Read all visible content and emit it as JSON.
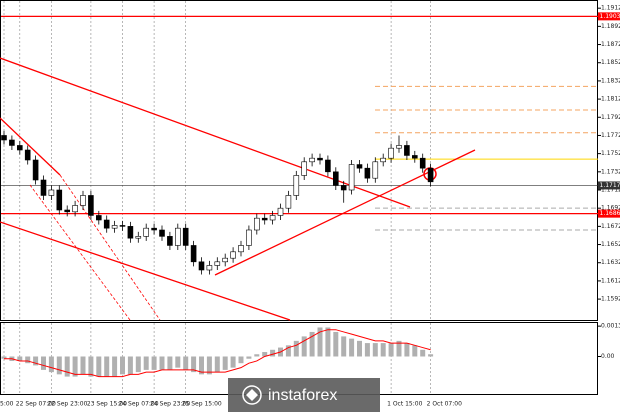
{
  "chart_data": [
    {
      "type": "candlestick",
      "categories": [
        "5:00",
        null,
        "22 Sep 07:00",
        null,
        null,
        null,
        "22 Sep 23:00",
        null,
        null,
        null,
        null,
        "23 Sep 15:00",
        null,
        null,
        null,
        "24 Sep 07:00",
        null,
        null,
        null,
        "24 Sep 23:00",
        null,
        null,
        null,
        "25 Sep 15:00",
        null,
        null,
        null,
        null,
        null,
        null,
        null,
        null,
        null,
        null,
        null,
        null,
        null,
        null,
        null,
        null,
        null,
        null,
        null,
        null,
        null,
        null,
        null,
        null,
        null,
        "1 Oct 15:00",
        null,
        null,
        null,
        null,
        "2 Oct 07:00"
      ],
      "open": [
        1.1772,
        1.1767,
        1.1761,
        1.1756,
        1.1745,
        1.1723,
        1.1706,
        1.1712,
        1.169,
        1.1688,
        1.1695,
        1.1706,
        1.1684,
        1.1679,
        1.167,
        1.1673,
        1.1672,
        1.1659,
        1.1661,
        1.167,
        1.1668,
        1.1661,
        1.1651,
        1.167,
        1.1651,
        1.1633,
        1.1624,
        1.1629,
        1.1633,
        1.1637,
        1.1644,
        1.1651,
        1.1668,
        1.1681,
        1.1679,
        1.1684,
        1.1692,
        1.1706,
        1.1728,
        1.1743,
        1.1747,
        1.1745,
        1.1732,
        1.1717,
        1.1712,
        1.174,
        1.1736,
        1.1725,
        1.1743,
        1.1747,
        1.1758,
        1.1761,
        1.175,
        1.1747,
        1.1736
      ],
      "high": [
        1.1777,
        1.1772,
        1.1766,
        1.1761,
        1.175,
        1.1728,
        1.1717,
        1.1717,
        1.1695,
        1.17,
        1.1711,
        1.1711,
        1.1689,
        1.1684,
        1.1678,
        1.1678,
        1.1677,
        1.1666,
        1.1675,
        1.1675,
        1.1673,
        1.1666,
        1.1675,
        1.1675,
        1.1656,
        1.1638,
        1.1634,
        1.1638,
        1.1642,
        1.1649,
        1.1656,
        1.1673,
        1.1686,
        1.1686,
        1.1689,
        1.1697,
        1.1711,
        1.1733,
        1.1748,
        1.1752,
        1.1752,
        1.175,
        1.1737,
        1.1722,
        1.1745,
        1.1745,
        1.1741,
        1.1748,
        1.1752,
        1.1763,
        1.1772,
        1.1766,
        1.1755,
        1.1752,
        1.1741
      ],
      "low": [
        1.1762,
        1.1756,
        1.1751,
        1.174,
        1.1718,
        1.1701,
        1.1701,
        1.1685,
        1.1683,
        1.1683,
        1.169,
        1.1679,
        1.1674,
        1.1665,
        1.1665,
        1.1667,
        1.1654,
        1.1654,
        1.1656,
        1.1663,
        1.1656,
        1.1646,
        1.1646,
        1.1646,
        1.1628,
        1.1619,
        1.1619,
        1.1624,
        1.1628,
        1.1632,
        1.1639,
        1.1646,
        1.1663,
        1.1674,
        1.1674,
        1.1679,
        1.1687,
        1.1701,
        1.1723,
        1.1738,
        1.174,
        1.1727,
        1.1712,
        1.1698,
        1.1707,
        1.1731,
        1.172,
        1.172,
        1.1738,
        1.1742,
        1.1753,
        1.1745,
        1.1742,
        1.1731,
        1.1716
      ],
      "close": [
        1.1767,
        1.1761,
        1.1756,
        1.1745,
        1.1723,
        1.1706,
        1.1712,
        1.169,
        1.1688,
        1.1695,
        1.1706,
        1.1684,
        1.1679,
        1.167,
        1.1673,
        1.1672,
        1.1659,
        1.1661,
        1.167,
        1.1668,
        1.1661,
        1.1651,
        1.167,
        1.1651,
        1.1633,
        1.1624,
        1.1629,
        1.1633,
        1.1637,
        1.1644,
        1.1651,
        1.1668,
        1.1681,
        1.1679,
        1.1684,
        1.1692,
        1.1706,
        1.1728,
        1.1743,
        1.1747,
        1.1745,
        1.1732,
        1.1717,
        1.1712,
        1.174,
        1.1736,
        1.1725,
        1.1743,
        1.1747,
        1.1758,
        1.1761,
        1.175,
        1.1747,
        1.1736,
        1.1721
      ],
      "ylim": [
        1.1569,
        1.1921
      ],
      "yticks": [
        1.1592,
        1.1612,
        1.1632,
        1.1652,
        1.1672,
        1.1692,
        1.1712,
        1.1732,
        1.1752,
        1.1772,
        1.1792,
        1.1812,
        1.1832,
        1.1852,
        1.1872,
        1.1892,
        1.1912
      ],
      "grid": "x",
      "levels": [
        {
          "value": 1.1903,
          "label": "1.1903",
          "color": "#ff0000"
        },
        {
          "value": 1.1686,
          "label": "1.1686",
          "color": "#ff0000"
        },
        {
          "value": 1.1717,
          "label": "1.1717",
          "color": "#333333"
        }
      ],
      "fib_levels": [
        {
          "value": 1.1826,
          "color": "#f4a460",
          "style": "dashed"
        },
        {
          "value": 1.18,
          "color": "#f4a460",
          "style": "dashed"
        },
        {
          "value": 1.1775,
          "color": "#f4a460",
          "style": "dashed"
        },
        {
          "value": 1.1746,
          "color": "#ffd700",
          "style": "solid"
        },
        {
          "value": 1.1692,
          "color": "#aaaaaa",
          "style": "dashed"
        },
        {
          "value": 1.1668,
          "color": "#aaaaaa",
          "style": "dashed"
        }
      ],
      "bull_color": "#ffffff",
      "bear_color": "#000000"
    },
    {
      "type": "bar",
      "values": [
        -0.0001,
        -0.0002,
        -0.0002,
        -0.0003,
        -0.0004,
        -0.0006,
        -0.0007,
        -0.0008,
        -0.0009,
        -0.0009,
        -0.0008,
        -0.0009,
        -0.0009,
        -0.0009,
        -0.0009,
        -0.0008,
        -0.0008,
        -0.0007,
        -0.0006,
        -0.0006,
        -0.0006,
        -0.0006,
        -0.0005,
        -0.0006,
        -0.0007,
        -0.0008,
        -0.0008,
        -0.0007,
        -0.0006,
        -0.0005,
        -0.0003,
        -0.0001,
        0.0001,
        0.0002,
        0.0003,
        0.0004,
        0.0005,
        0.0007,
        0.0009,
        0.0011,
        0.0013,
        0.0013,
        0.0011,
        0.0009,
        0.0008,
        0.0007,
        0.0006,
        0.0006,
        0.0006,
        0.0006,
        0.0007,
        0.0006,
        0.0005,
        0.0003,
        0.0001
      ],
      "color": "#b0b0b0",
      "signal": [
        -0.0001,
        -0.0001,
        -0.0002,
        -0.0002,
        -0.0003,
        -0.0004,
        -0.0005,
        -0.0006,
        -0.0007,
        -0.0008,
        -0.0008,
        -0.0008,
        -0.0009,
        -0.0009,
        -0.0009,
        -0.0009,
        -0.0008,
        -0.0008,
        -0.0007,
        -0.0007,
        -0.0006,
        -0.0006,
        -0.0006,
        -0.0006,
        -0.0006,
        -0.0007,
        -0.0007,
        -0.0007,
        -0.0007,
        -0.0006,
        -0.0005,
        -0.0003,
        -0.0002,
        0,
        0.0001,
        0.0002,
        0.0004,
        0.0005,
        0.0007,
        0.0009,
        0.0011,
        0.0012,
        0.0012,
        0.0011,
        0.001,
        0.0009,
        0.0008,
        0.0007,
        0.0007,
        0.0006,
        0.0006,
        0.0006,
        0.0005,
        0.0004,
        0.0003
      ],
      "signal_color": "#ff0000",
      "ylim": [
        -0.00168,
        0.0015
      ],
      "yticks": [
        {
          "value": 0.00136,
          "label": "0.00136"
        },
        {
          "value": 0,
          "label": "0.00"
        }
      ]
    }
  ],
  "watermark": "instaforex"
}
